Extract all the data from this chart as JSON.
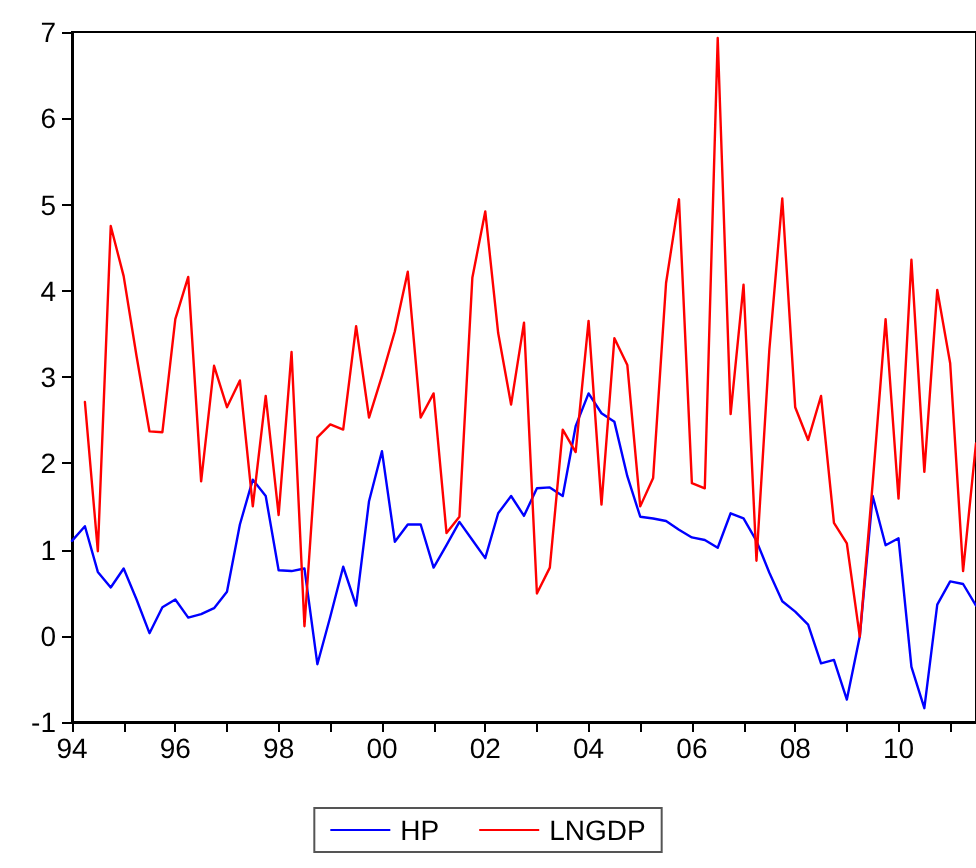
{
  "chart_data": {
    "type": "line",
    "x": [
      1994,
      1994.25,
      1994.5,
      1994.75,
      1995,
      1995.25,
      1995.5,
      1995.75,
      1996,
      1996.25,
      1996.5,
      1996.75,
      1997,
      1997.25,
      1997.5,
      1997.75,
      1998,
      1998.25,
      1998.5,
      1998.75,
      1999,
      1999.25,
      1999.5,
      1999.75,
      2000,
      2000.25,
      2000.5,
      2000.75,
      2001,
      2001.25,
      2001.5,
      2001.75,
      2002,
      2002.25,
      2002.5,
      2002.75,
      2003,
      2003.25,
      2003.5,
      2003.75,
      2004,
      2004.25,
      2004.5,
      2004.75,
      2005,
      2005.25,
      2005.5,
      2005.75,
      2006,
      2006.25,
      2006.5,
      2006.75,
      2007,
      2007.25,
      2007.5,
      2007.75,
      2008,
      2008.25,
      2008.5,
      2008.75,
      2009,
      2009.25,
      2009.5,
      2009.75,
      2010,
      2010.25,
      2010.5,
      2010.75,
      2011,
      2011.25,
      2011.5
    ],
    "series": [
      {
        "name": "HP",
        "color": "#0000ff",
        "values": [
          1.1,
          1.27,
          0.74,
          0.56,
          0.78,
          0.42,
          0.03,
          0.33,
          0.42,
          0.21,
          0.25,
          0.32,
          0.51,
          1.29,
          1.81,
          1.62,
          0.76,
          0.75,
          0.78,
          -0.33,
          0.22,
          0.8,
          0.35,
          1.56,
          2.14,
          1.09,
          1.29,
          1.29,
          0.79,
          1.05,
          1.32,
          1.11,
          0.9,
          1.42,
          1.62,
          1.39,
          1.71,
          1.72,
          1.62,
          2.43,
          2.81,
          2.58,
          2.48,
          1.85,
          1.38,
          1.36,
          1.33,
          1.23,
          1.14,
          1.11,
          1.02,
          1.42,
          1.36,
          1.1,
          0.73,
          0.4,
          0.28,
          0.13,
          -0.32,
          -0.28,
          -0.74,
          -0.01,
          1.62,
          1.05,
          1.13,
          -0.36,
          -0.84,
          0.36,
          0.63,
          0.6,
          0.35
        ]
      },
      {
        "name": "LNGDP",
        "color": "#ff0000",
        "values": [
          null,
          2.71,
          0.98,
          4.75,
          4.17,
          3.24,
          2.37,
          2.36,
          3.67,
          4.16,
          1.79,
          3.13,
          2.65,
          2.96,
          1.5,
          2.78,
          1.4,
          3.29,
          0.11,
          2.3,
          2.45,
          2.39,
          3.59,
          2.53,
          3.01,
          3.53,
          4.22,
          2.53,
          2.81,
          1.19,
          1.38,
          4.15,
          4.92,
          3.51,
          2.68,
          3.63,
          0.49,
          0.79,
          2.39,
          2.13,
          3.65,
          1.52,
          3.45,
          3.14,
          1.5,
          1.83,
          4.09,
          5.06,
          1.77,
          1.71,
          6.93,
          2.57,
          4.07,
          0.87,
          3.32,
          5.07,
          2.65,
          2.27,
          2.78,
          1.31,
          1.07,
          -0.01,
          1.77,
          3.67,
          1.59,
          4.36,
          1.9,
          4.01,
          3.16,
          0.75,
          2.23
        ]
      }
    ],
    "xlim": [
      1994,
      2011.5
    ],
    "xticks": [
      {
        "value": 1994,
        "label": "94"
      },
      {
        "value": 1995,
        "label": null
      },
      {
        "value": 1996,
        "label": "96"
      },
      {
        "value": 1997,
        "label": null
      },
      {
        "value": 1998,
        "label": "98"
      },
      {
        "value": 1999,
        "label": null
      },
      {
        "value": 2000,
        "label": "00"
      },
      {
        "value": 2001,
        "label": null
      },
      {
        "value": 2002,
        "label": "02"
      },
      {
        "value": 2003,
        "label": null
      },
      {
        "value": 2004,
        "label": "04"
      },
      {
        "value": 2005,
        "label": null
      },
      {
        "value": 2006,
        "label": "06"
      },
      {
        "value": 2007,
        "label": null
      },
      {
        "value": 2008,
        "label": "08"
      },
      {
        "value": 2009,
        "label": null
      },
      {
        "value": 2010,
        "label": "10"
      },
      {
        "value": 2011,
        "label": null
      }
    ],
    "ylim": [
      -1,
      7
    ],
    "yticks": [
      -1,
      0,
      1,
      2,
      3,
      4,
      5,
      6,
      7
    ],
    "grid": false,
    "legend": "bottom",
    "marker": "none",
    "line_style": "solid"
  }
}
